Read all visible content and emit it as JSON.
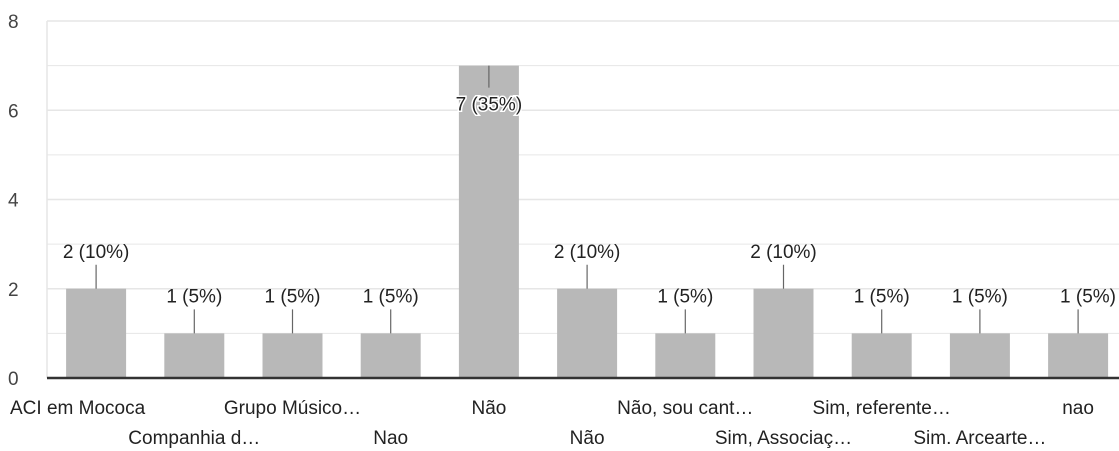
{
  "chart_data": {
    "type": "bar",
    "categories": [
      "ACI em Mococa",
      "Companhia d…",
      "Grupo Músico…",
      "Nao",
      "Não",
      "Não",
      "Não, sou cant…",
      "Sim, Associaç…",
      "Sim, referente…",
      "Sim. Arcearte…",
      "nao"
    ],
    "values": [
      2,
      1,
      1,
      1,
      7,
      2,
      1,
      2,
      1,
      1,
      1
    ],
    "data_labels": [
      "2 (10%)",
      "1 (5%)",
      "1 (5%)",
      "1 (5%)",
      "7 (35%)",
      "2 (10%)",
      "1 (5%)",
      "2 (10%)",
      "1 (5%)",
      "1 (5%)",
      "1 (5%)"
    ],
    "yticks": [
      0,
      2,
      4,
      6,
      8
    ],
    "ylim": [
      0,
      8
    ],
    "grid": true,
    "colors": {
      "bar": "#b8b8b8",
      "grid": "#e6e6e6",
      "axis": "#333333",
      "leader": "#666666"
    }
  }
}
